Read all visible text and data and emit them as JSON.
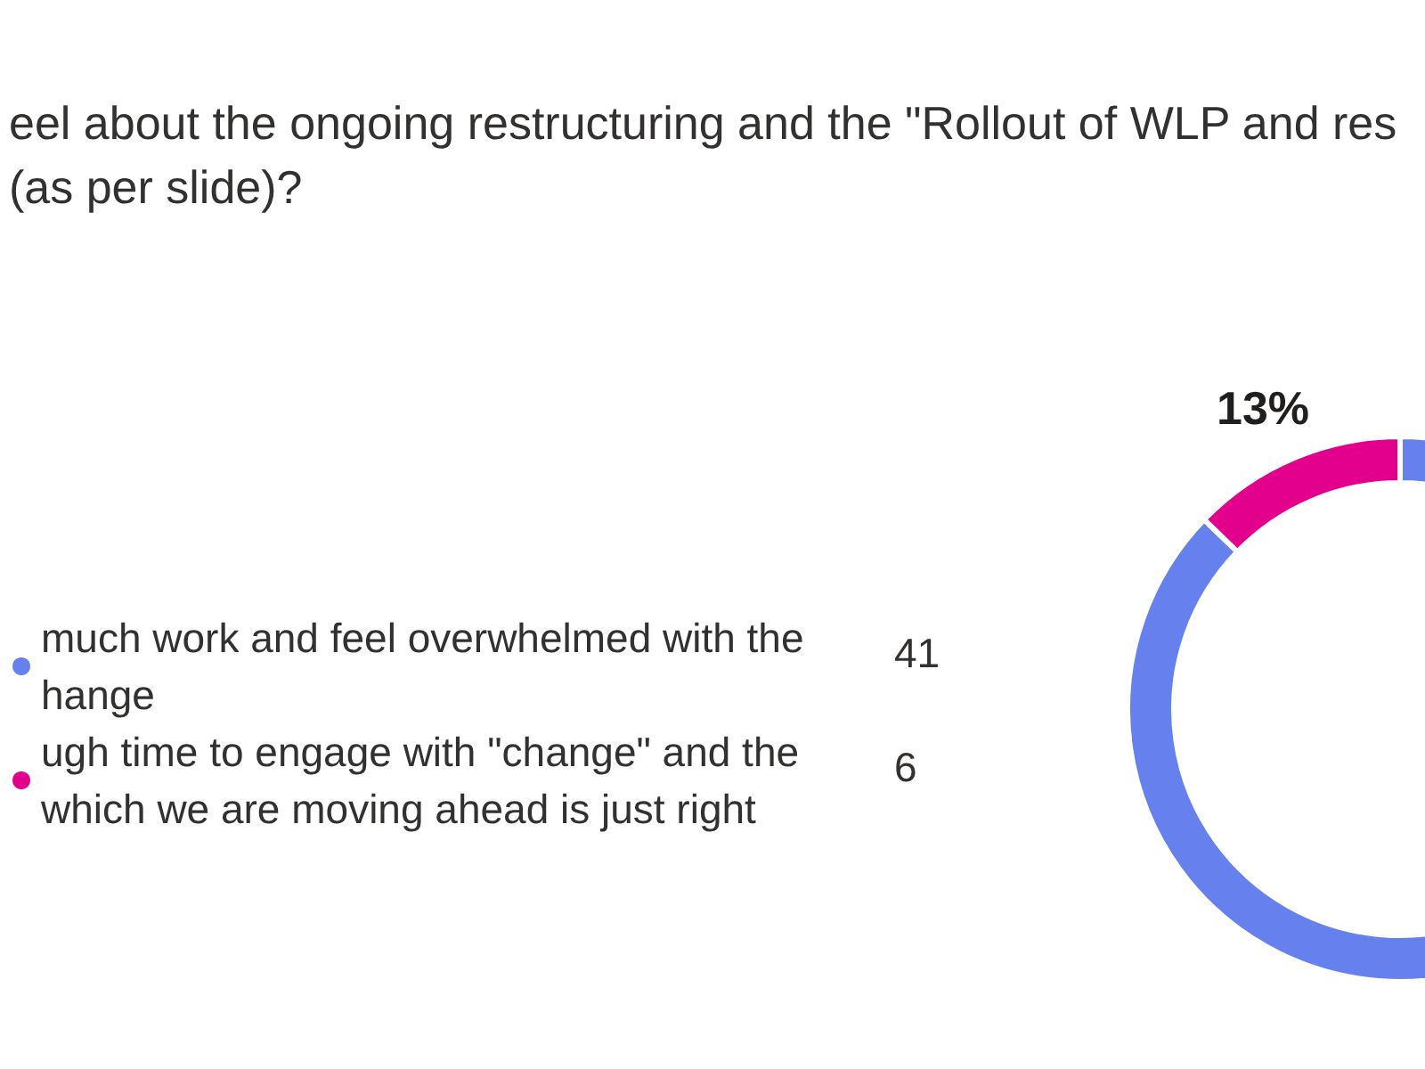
{
  "chart_data": {
    "type": "donut",
    "title": "eel about the ongoing restructuring and the \"Rollout of WLP and res",
    "subtitle": "(as per slide)?",
    "categories": [
      "much work and feel overwhelmed with the hange",
      "ugh time to engage with \"change\" and the which we are moving ahead is just right"
    ],
    "values": [
      41,
      6
    ],
    "colors": [
      "#6680ee",
      "#e3008c"
    ],
    "data_labels": true,
    "annotations": [
      "13%"
    ],
    "legend": "left"
  }
}
